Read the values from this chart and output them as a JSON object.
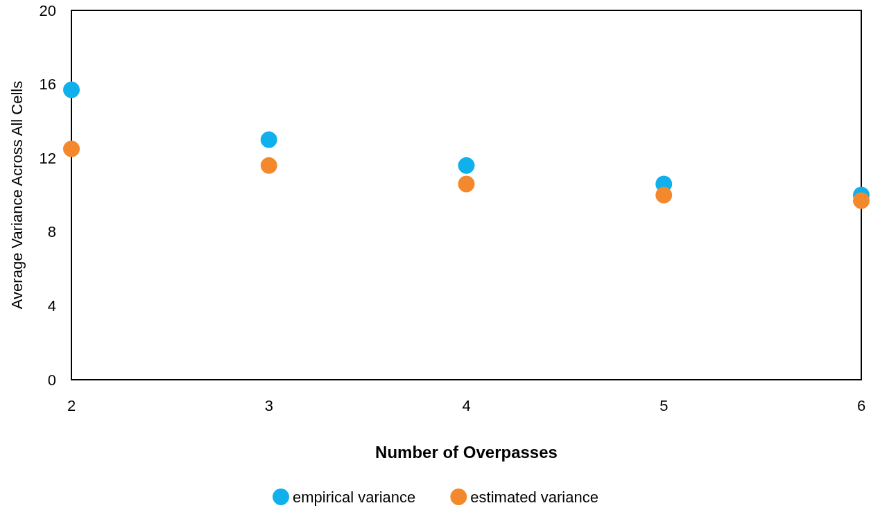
{
  "chart_data": {
    "type": "scatter",
    "xlabel": "Number of Overpasses",
    "ylabel": "Average Variance Across All Cells",
    "x": [
      2,
      3,
      4,
      5,
      6
    ],
    "series": [
      {
        "name": "empirical variance",
        "color": "#0fb0ec",
        "values": [
          15.7,
          13.0,
          11.6,
          10.6,
          10.0
        ]
      },
      {
        "name": "estimated variance",
        "color": "#f3892c",
        "values": [
          12.5,
          11.6,
          10.6,
          10.0,
          9.7
        ]
      }
    ],
    "xlim": [
      2,
      6
    ],
    "xticks": [
      2,
      3,
      4,
      5,
      6
    ],
    "ylim": [
      0,
      20
    ],
    "yticks": [
      0,
      4,
      8,
      12,
      16,
      20
    ],
    "grid": false,
    "legend": "bottom",
    "marker": "circle"
  }
}
